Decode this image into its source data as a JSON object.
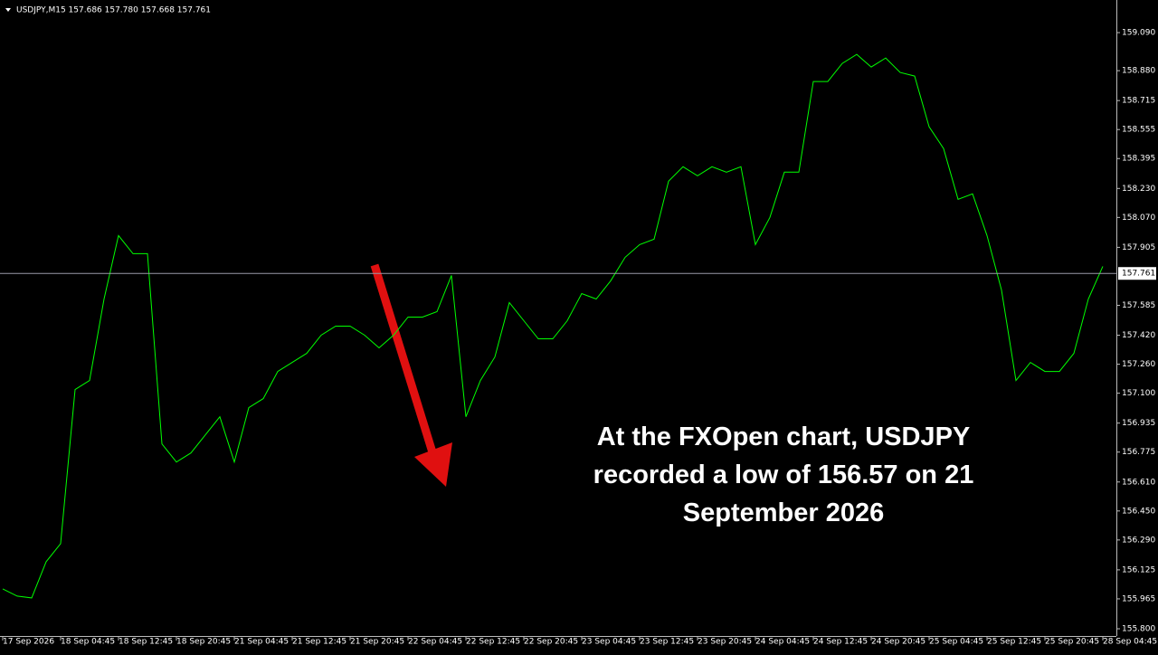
{
  "chart_data": {
    "type": "line",
    "title": "USDJPY,M15 157.686 157.780 157.668 157.761",
    "annotation": "At the FXOpen chart, USDJPY recorded a low of 156.57 on 21 September 2026",
    "categories": [
      "17 Sep 2026",
      null,
      null,
      null,
      "18 Sep 04:45",
      null,
      null,
      null,
      "18 Sep 12:45",
      null,
      null,
      null,
      "18 Sep 20:45",
      null,
      null,
      null,
      "21 Sep 04:45",
      null,
      null,
      null,
      "21 Sep 12:45",
      null,
      null,
      null,
      "21 Sep 20:45",
      null,
      null,
      null,
      "22 Sep 04:45",
      null,
      null,
      null,
      "22 Sep 12:45",
      null,
      null,
      null,
      "22 Sep 20:45",
      null,
      null,
      null,
      "23 Sep 04:45",
      null,
      null,
      null,
      "23 Sep 12:45",
      null,
      null,
      null,
      "23 Sep 20:45",
      null,
      null,
      null,
      "24 Sep 04:45",
      null,
      null,
      null,
      "24 Sep 12:45",
      null,
      null,
      null,
      "24 Sep 20:45",
      null,
      null,
      null,
      "25 Sep 04:45",
      null,
      null,
      null,
      "25 Sep 12:45",
      null,
      null,
      null,
      "25 Sep 20:45",
      null,
      null,
      null,
      "28 Sep 04:45"
    ],
    "series": [
      {
        "name": "USDJPY",
        "color": "#00ff00",
        "values": [
          156.02,
          155.98,
          155.97,
          156.17,
          156.27,
          157.12,
          157.17,
          157.62,
          157.97,
          157.87,
          157.87,
          156.82,
          156.72,
          156.77,
          156.87,
          156.97,
          156.72,
          157.02,
          157.07,
          157.22,
          157.27,
          157.32,
          157.42,
          157.47,
          157.47,
          157.42,
          157.35,
          157.42,
          157.52,
          157.52,
          157.55,
          157.75,
          156.97,
          157.17,
          157.3,
          157.6,
          157.5,
          157.4,
          157.4,
          157.5,
          157.65,
          157.62,
          157.72,
          157.85,
          157.92,
          157.95,
          158.27,
          158.35,
          158.3,
          158.35,
          158.32,
          158.35,
          157.92,
          158.07,
          158.32,
          158.32,
          158.82,
          158.82,
          158.92,
          158.97,
          158.9,
          158.95,
          158.87,
          158.85,
          158.57,
          158.45,
          158.17,
          158.2,
          157.97,
          157.67,
          157.17,
          157.27,
          157.22,
          157.22,
          157.32,
          157.62,
          157.8
        ]
      }
    ],
    "current_price": 157.761,
    "ylim": [
      155.76,
      159.27
    ],
    "yticks": [
      {
        "value": 159.09,
        "label": "159.090"
      },
      {
        "value": 158.88,
        "label": "158.880"
      },
      158.715,
      {
        "value": 158.555,
        "label": "158.555"
      },
      158.395,
      {
        "value": 158.23,
        "label": "158.230"
      },
      {
        "value": 158.07,
        "label": "158.070"
      },
      157.905,
      157.585,
      {
        "value": 157.42,
        "label": "157.420"
      },
      {
        "value": 157.26,
        "label": "157.260"
      },
      {
        "value": 157.1,
        "label": "157.100"
      },
      156.935,
      156.775,
      {
        "value": 156.61,
        "label": "156.610"
      },
      {
        "value": 156.45,
        "label": "156.450"
      },
      {
        "value": 156.29,
        "label": "156.290"
      },
      156.125,
      155.965,
      {
        "value": 155.8,
        "label": "155.800"
      }
    ]
  }
}
